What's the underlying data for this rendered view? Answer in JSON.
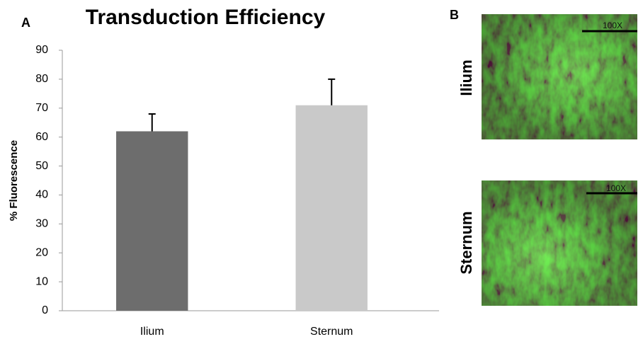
{
  "panel_a": "A",
  "chart_data": {
    "type": "bar",
    "title": "Transduction Efficiency",
    "y_label": "% Fluorescence",
    "categories": [
      "Ilium",
      "Sternum"
    ],
    "values": [
      62,
      71
    ],
    "errors": [
      6,
      9
    ],
    "colors": [
      "#6d6d6d",
      "#c9c9c9"
    ],
    "error_color": "#000000",
    "ylim": [
      0,
      90
    ],
    "yticks": [
      0,
      10,
      20,
      30,
      40,
      50,
      60,
      70,
      80,
      90
    ],
    "grid": false
  },
  "panel_b": {
    "label": "B",
    "images": [
      {
        "label": "Ilium",
        "scale": "100X"
      },
      {
        "label": "Sternum",
        "scale": "100X"
      }
    ]
  }
}
